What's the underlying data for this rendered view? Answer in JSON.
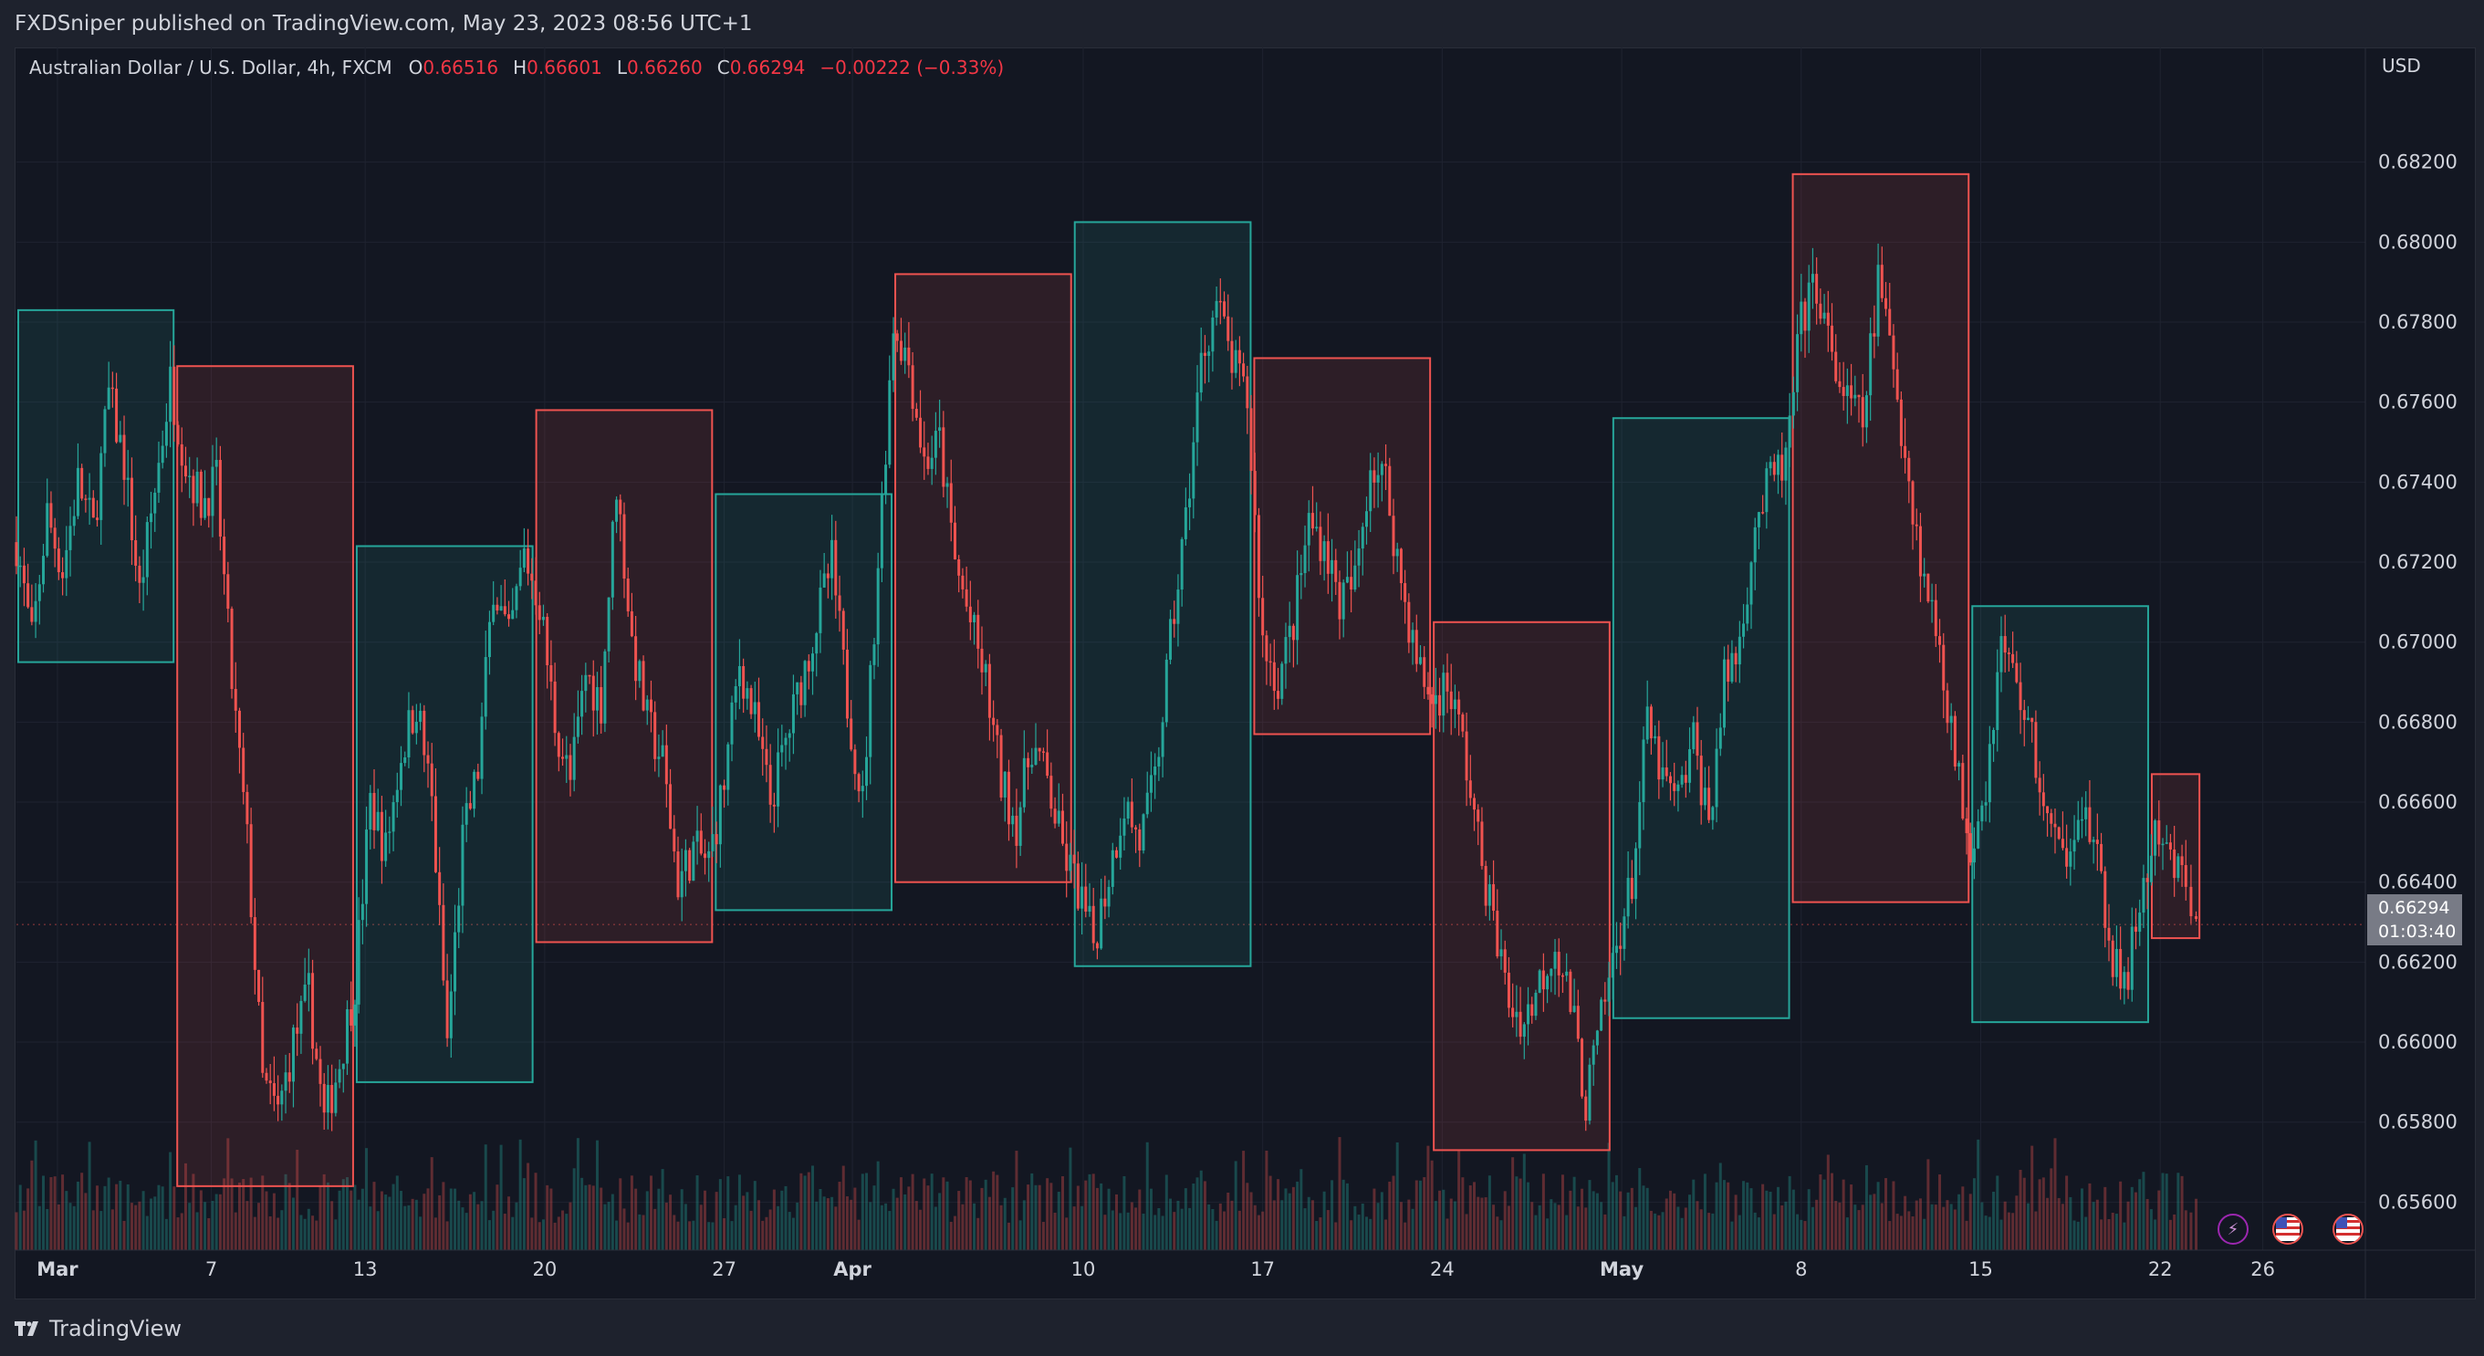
{
  "header": {
    "publish_line": "FXDSniper published on TradingView.com, May 23, 2023 08:56 UTC+1"
  },
  "legend": {
    "symbol": "Australian Dollar / U.S. Dollar, 4h, FXCM",
    "open_label": "O",
    "open": "0.66516",
    "high_label": "H",
    "high": "0.66601",
    "low_label": "L",
    "low": "0.66260",
    "close_label": "C",
    "close": "0.66294",
    "change": "−0.00222 (−0.33%)"
  },
  "price_axis": {
    "currency": "USD",
    "last_price": "0.66294",
    "countdown": "01:03:40"
  },
  "footer": {
    "brand": "TradingView"
  },
  "colors": {
    "up": "#26a69a",
    "down": "#ef5350",
    "background": "#131722",
    "grid": "#1e222d",
    "text": "#d1d4dc"
  },
  "icons": [
    "lightning-event-icon",
    "us-flag-event-icon",
    "us-flag-event-icon"
  ],
  "chart_data": {
    "type": "candlestick",
    "symbol": "AUDUSD",
    "timeframe": "4h",
    "x_axis": {
      "tick_labels": [
        "Mar",
        "7",
        "13",
        "20",
        "27",
        "Apr",
        "10",
        "17",
        "24",
        "May",
        "8",
        "15",
        "22",
        "26"
      ],
      "tick_positions_days": [
        0,
        6,
        12,
        19,
        26,
        31,
        40,
        47,
        54,
        61,
        68,
        75,
        82,
        86
      ],
      "range_days": [
        -1.6,
        90
      ]
    },
    "y_axis": {
      "ticks": [
        "0.65600",
        "0.65800",
        "0.66000",
        "0.66200",
        "0.66400",
        "0.66600",
        "0.66800",
        "0.67000",
        "0.67200",
        "0.67400",
        "0.67600",
        "0.67800",
        "0.68000",
        "0.68200"
      ],
      "range": [
        0.6548,
        0.684
      ]
    },
    "weekly_boxes": [
      {
        "start": -1.6,
        "end": 4.6,
        "high": 0.6783,
        "low": 0.6695,
        "direction": "up"
      },
      {
        "start": 4.6,
        "end": 11.6,
        "high": 0.6769,
        "low": 0.6564,
        "direction": "down"
      },
      {
        "start": 11.6,
        "end": 18.6,
        "high": 0.6724,
        "low": 0.659,
        "direction": "up"
      },
      {
        "start": 18.6,
        "end": 25.6,
        "high": 0.6758,
        "low": 0.6625,
        "direction": "down"
      },
      {
        "start": 25.6,
        "end": 32.6,
        "high": 0.6737,
        "low": 0.6633,
        "direction": "up"
      },
      {
        "start": 32.6,
        "end": 39.6,
        "high": 0.6792,
        "low": 0.664,
        "direction": "down"
      },
      {
        "start": 39.6,
        "end": 46.6,
        "high": 0.6805,
        "low": 0.6619,
        "direction": "up"
      },
      {
        "start": 46.6,
        "end": 53.6,
        "high": 0.6771,
        "low": 0.6677,
        "direction": "down"
      },
      {
        "start": 53.6,
        "end": 60.6,
        "high": 0.6705,
        "low": 0.6573,
        "direction": "down"
      },
      {
        "start": 60.6,
        "end": 67.6,
        "high": 0.6756,
        "low": 0.6606,
        "direction": "up"
      },
      {
        "start": 67.6,
        "end": 74.6,
        "high": 0.6817,
        "low": 0.6635,
        "direction": "down"
      },
      {
        "start": 74.6,
        "end": 81.6,
        "high": 0.6709,
        "low": 0.6605,
        "direction": "up"
      },
      {
        "start": 81.6,
        "end": 83.6,
        "high": 0.6667,
        "low": 0.6626,
        "direction": "down"
      }
    ],
    "price_path": [
      [
        -1.6,
        0.6725
      ],
      [
        -1.0,
        0.67
      ],
      [
        -0.4,
        0.6732
      ],
      [
        0.2,
        0.6718
      ],
      [
        0.8,
        0.674
      ],
      [
        1.4,
        0.6728
      ],
      [
        2.0,
        0.6762
      ],
      [
        2.6,
        0.6745
      ],
      [
        3.2,
        0.6712
      ],
      [
        3.8,
        0.6738
      ],
      [
        4.4,
        0.6765
      ],
      [
        5.0,
        0.6745
      ],
      [
        5.6,
        0.6735
      ],
      [
        6.2,
        0.674
      ],
      [
        6.8,
        0.669
      ],
      [
        7.4,
        0.665
      ],
      [
        8.0,
        0.659
      ],
      [
        8.6,
        0.6582
      ],
      [
        9.2,
        0.66
      ],
      [
        9.8,
        0.6612
      ],
      [
        10.4,
        0.658
      ],
      [
        11.0,
        0.6595
      ],
      [
        11.6,
        0.6615
      ],
      [
        12.2,
        0.666
      ],
      [
        12.8,
        0.6648
      ],
      [
        13.4,
        0.6672
      ],
      [
        14.0,
        0.6685
      ],
      [
        14.6,
        0.666
      ],
      [
        15.2,
        0.66
      ],
      [
        15.8,
        0.665
      ],
      [
        16.4,
        0.6668
      ],
      [
        17.0,
        0.6715
      ],
      [
        17.6,
        0.67
      ],
      [
        18.2,
        0.6722
      ],
      [
        18.8,
        0.671
      ],
      [
        19.4,
        0.668
      ],
      [
        20.0,
        0.6665
      ],
      [
        20.6,
        0.6692
      ],
      [
        21.2,
        0.6685
      ],
      [
        21.8,
        0.674
      ],
      [
        22.4,
        0.67
      ],
      [
        23.0,
        0.668
      ],
      [
        23.6,
        0.667
      ],
      [
        24.2,
        0.664
      ],
      [
        24.8,
        0.6648
      ],
      [
        25.4,
        0.6645
      ],
      [
        26.0,
        0.6665
      ],
      [
        26.6,
        0.6695
      ],
      [
        27.2,
        0.668
      ],
      [
        27.8,
        0.666
      ],
      [
        28.4,
        0.6675
      ],
      [
        29.0,
        0.669
      ],
      [
        29.6,
        0.6705
      ],
      [
        30.2,
        0.672
      ],
      [
        30.8,
        0.6685
      ],
      [
        31.4,
        0.666
      ],
      [
        32.0,
        0.672
      ],
      [
        32.6,
        0.678
      ],
      [
        33.2,
        0.677
      ],
      [
        33.8,
        0.6745
      ],
      [
        34.4,
        0.675
      ],
      [
        35.0,
        0.672
      ],
      [
        35.6,
        0.6705
      ],
      [
        36.2,
        0.669
      ],
      [
        36.8,
        0.6665
      ],
      [
        37.4,
        0.6655
      ],
      [
        38.0,
        0.6675
      ],
      [
        38.6,
        0.6665
      ],
      [
        39.2,
        0.6648
      ],
      [
        39.8,
        0.6638
      ],
      [
        40.4,
        0.6625
      ],
      [
        41.0,
        0.6642
      ],
      [
        41.6,
        0.666
      ],
      [
        42.2,
        0.665
      ],
      [
        42.8,
        0.6665
      ],
      [
        43.4,
        0.67
      ],
      [
        44.0,
        0.673
      ],
      [
        44.6,
        0.677
      ],
      [
        45.2,
        0.6785
      ],
      [
        45.8,
        0.677
      ],
      [
        46.4,
        0.676
      ],
      [
        47.0,
        0.67
      ],
      [
        47.6,
        0.669
      ],
      [
        48.2,
        0.6705
      ],
      [
        48.8,
        0.673
      ],
      [
        49.4,
        0.6725
      ],
      [
        50.0,
        0.671
      ],
      [
        50.6,
        0.6715
      ],
      [
        51.2,
        0.6745
      ],
      [
        51.8,
        0.674
      ],
      [
        52.4,
        0.6715
      ],
      [
        53.0,
        0.6695
      ],
      [
        53.6,
        0.6685
      ],
      [
        54.2,
        0.669
      ],
      [
        54.8,
        0.6675
      ],
      [
        55.4,
        0.665
      ],
      [
        56.0,
        0.663
      ],
      [
        56.6,
        0.661
      ],
      [
        57.2,
        0.6605
      ],
      [
        57.8,
        0.6615
      ],
      [
        58.4,
        0.6625
      ],
      [
        59.0,
        0.661
      ],
      [
        59.6,
        0.6585
      ],
      [
        60.2,
        0.6605
      ],
      [
        60.8,
        0.6625
      ],
      [
        61.4,
        0.664
      ],
      [
        62.0,
        0.668
      ],
      [
        62.6,
        0.6665
      ],
      [
        63.2,
        0.666
      ],
      [
        63.8,
        0.6675
      ],
      [
        64.4,
        0.6655
      ],
      [
        65.0,
        0.669
      ],
      [
        65.6,
        0.67
      ],
      [
        66.2,
        0.673
      ],
      [
        66.8,
        0.674
      ],
      [
        67.4,
        0.6745
      ],
      [
        68.0,
        0.678
      ],
      [
        68.6,
        0.679
      ],
      [
        69.2,
        0.677
      ],
      [
        69.8,
        0.676
      ],
      [
        70.4,
        0.6755
      ],
      [
        71.0,
        0.679
      ],
      [
        71.6,
        0.677
      ],
      [
        72.2,
        0.674
      ],
      [
        72.8,
        0.6715
      ],
      [
        73.4,
        0.67
      ],
      [
        74.0,
        0.667
      ],
      [
        74.6,
        0.665
      ],
      [
        75.2,
        0.6665
      ],
      [
        75.8,
        0.67
      ],
      [
        76.4,
        0.669
      ],
      [
        77.0,
        0.6675
      ],
      [
        77.6,
        0.6655
      ],
      [
        78.2,
        0.6645
      ],
      [
        78.8,
        0.666
      ],
      [
        79.4,
        0.665
      ],
      [
        80.0,
        0.6625
      ],
      [
        80.6,
        0.6612
      ],
      [
        81.2,
        0.6635
      ],
      [
        81.8,
        0.665
      ],
      [
        82.4,
        0.6645
      ],
      [
        83.0,
        0.664
      ],
      [
        83.4,
        0.6629
      ]
    ]
  }
}
